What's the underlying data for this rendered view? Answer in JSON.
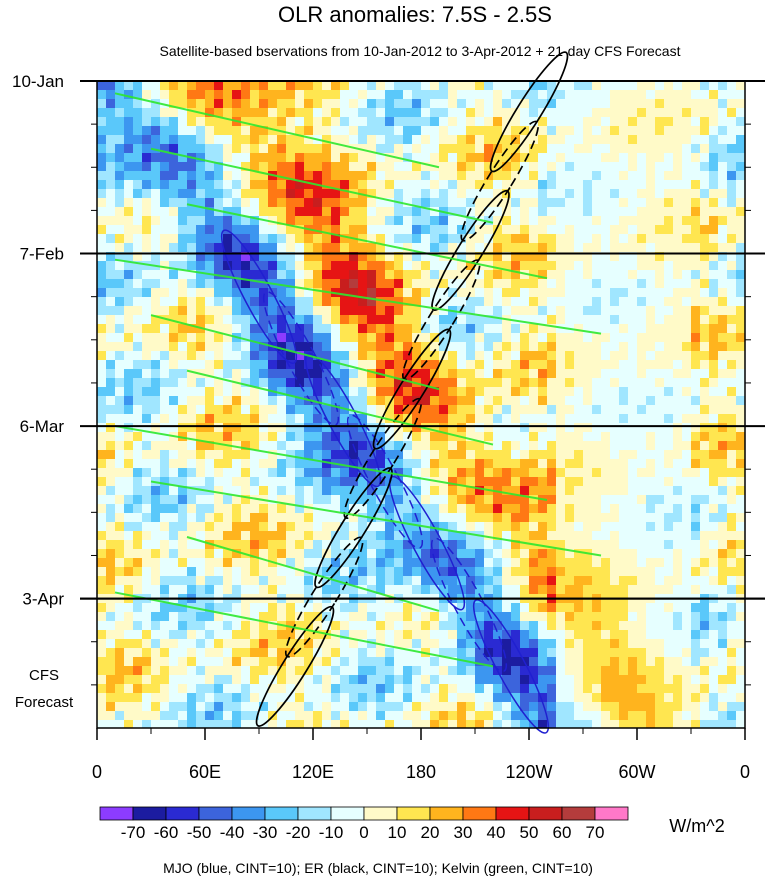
{
  "chart_data": {
    "type": "heatmap",
    "title": "OLR anomalies: 7.5S - 2.5S",
    "subtitle": "Satellite-based bservations from 10-Jan-2012 to 3-Apr-2012 + 21-day CFS Forecast",
    "x_ticks": [
      "0",
      "60E",
      "120E",
      "180",
      "120W",
      "60W",
      "0"
    ],
    "x_range_deg_east": [
      0,
      360
    ],
    "y_ticks": [
      "10-Jan",
      "7-Feb",
      "6-Mar",
      "3-Apr"
    ],
    "y_range_days": [
      0,
      105
    ],
    "y_tick_days": [
      0,
      28,
      56,
      84
    ],
    "forecast_start_day": 84,
    "forecast_label": [
      "CFS",
      "Forecast"
    ],
    "colorbar": {
      "labels": [
        "-70",
        "-60",
        "-50",
        "-40",
        "-30",
        "-20",
        "-10",
        "0",
        "10",
        "20",
        "30",
        "40",
        "50",
        "60",
        "70"
      ],
      "colors": [
        "#8c3cff",
        "#1c1ca0",
        "#2a2ad2",
        "#3c64dc",
        "#3c96f0",
        "#5ac8fa",
        "#a0e6ff",
        "#e6ffff",
        "#fffac8",
        "#ffe650",
        "#ffb41e",
        "#ff7814",
        "#e61414",
        "#c81e1e",
        "#b43c3c",
        "#ff78c8"
      ],
      "units": "W/m^2"
    },
    "footnote": "MJO (blue, CINT=10); ER (black, CINT=10); Kelvin (green, CINT=10)",
    "contour_series": [
      {
        "name": "MJO",
        "color": "#2020d0",
        "cint": 10
      },
      {
        "name": "ER",
        "color": "#000000",
        "cint": 10
      },
      {
        "name": "Kelvin",
        "color": "#2ee82e",
        "cint": 10
      }
    ],
    "mjo_band": {
      "lon_start": 90,
      "lon_end": 230,
      "day_start": 35,
      "day_end": 95
    },
    "er_band": {
      "lon_start": 240,
      "lon_end": 110,
      "day_start": 5,
      "day_end": 95
    }
  }
}
